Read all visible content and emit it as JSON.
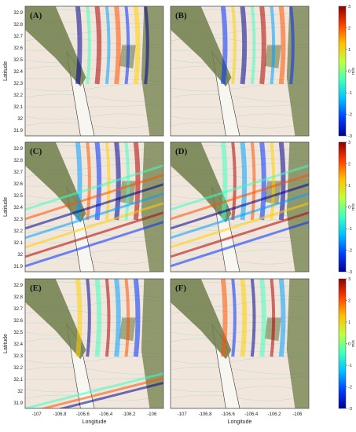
{
  "chart_data": {
    "type": "heatmap",
    "panels": [
      {
        "label": "(A)"
      },
      {
        "label": "(B)"
      },
      {
        "label": "(C)"
      },
      {
        "label": "(D)"
      },
      {
        "label": "(E)"
      },
      {
        "label": "(F)"
      }
    ],
    "xlabel": "Longitude",
    "ylabel": "Latitude",
    "x_ticks": [
      "-107",
      "-106.8",
      "-106.6",
      "-106.4",
      "-106.2",
      "-106"
    ],
    "x_tick_values": [
      -107,
      -106.8,
      -106.6,
      -106.4,
      -106.2,
      -106
    ],
    "y_ticks": [
      "31.9",
      "32",
      "32.1",
      "32.2",
      "32.3",
      "32.4",
      "32.5",
      "32.6",
      "32.7",
      "32.8",
      "32.9"
    ],
    "y_tick_values": [
      31.9,
      32.0,
      32.1,
      32.2,
      32.3,
      32.4,
      32.5,
      32.6,
      32.7,
      32.8,
      32.9
    ],
    "xlim": [
      -107.1,
      -105.9
    ],
    "ylim": [
      31.85,
      32.95
    ],
    "colorbar": {
      "unit": "m/s",
      "range": [
        -3,
        3
      ],
      "ticks": [
        "3",
        "2",
        "1",
        "0",
        "-1",
        "-2",
        "-3"
      ],
      "colors": [
        "#00008f",
        "#0040ff",
        "#00c0ff",
        "#40ffbf",
        "#bfff40",
        "#ffc000",
        "#ff4000",
        "#8f0000"
      ]
    },
    "terrain_colors": {
      "background": "#f1e6dc",
      "mountain": "#6f7d4a",
      "valley": "#f8f6f0"
    }
  }
}
